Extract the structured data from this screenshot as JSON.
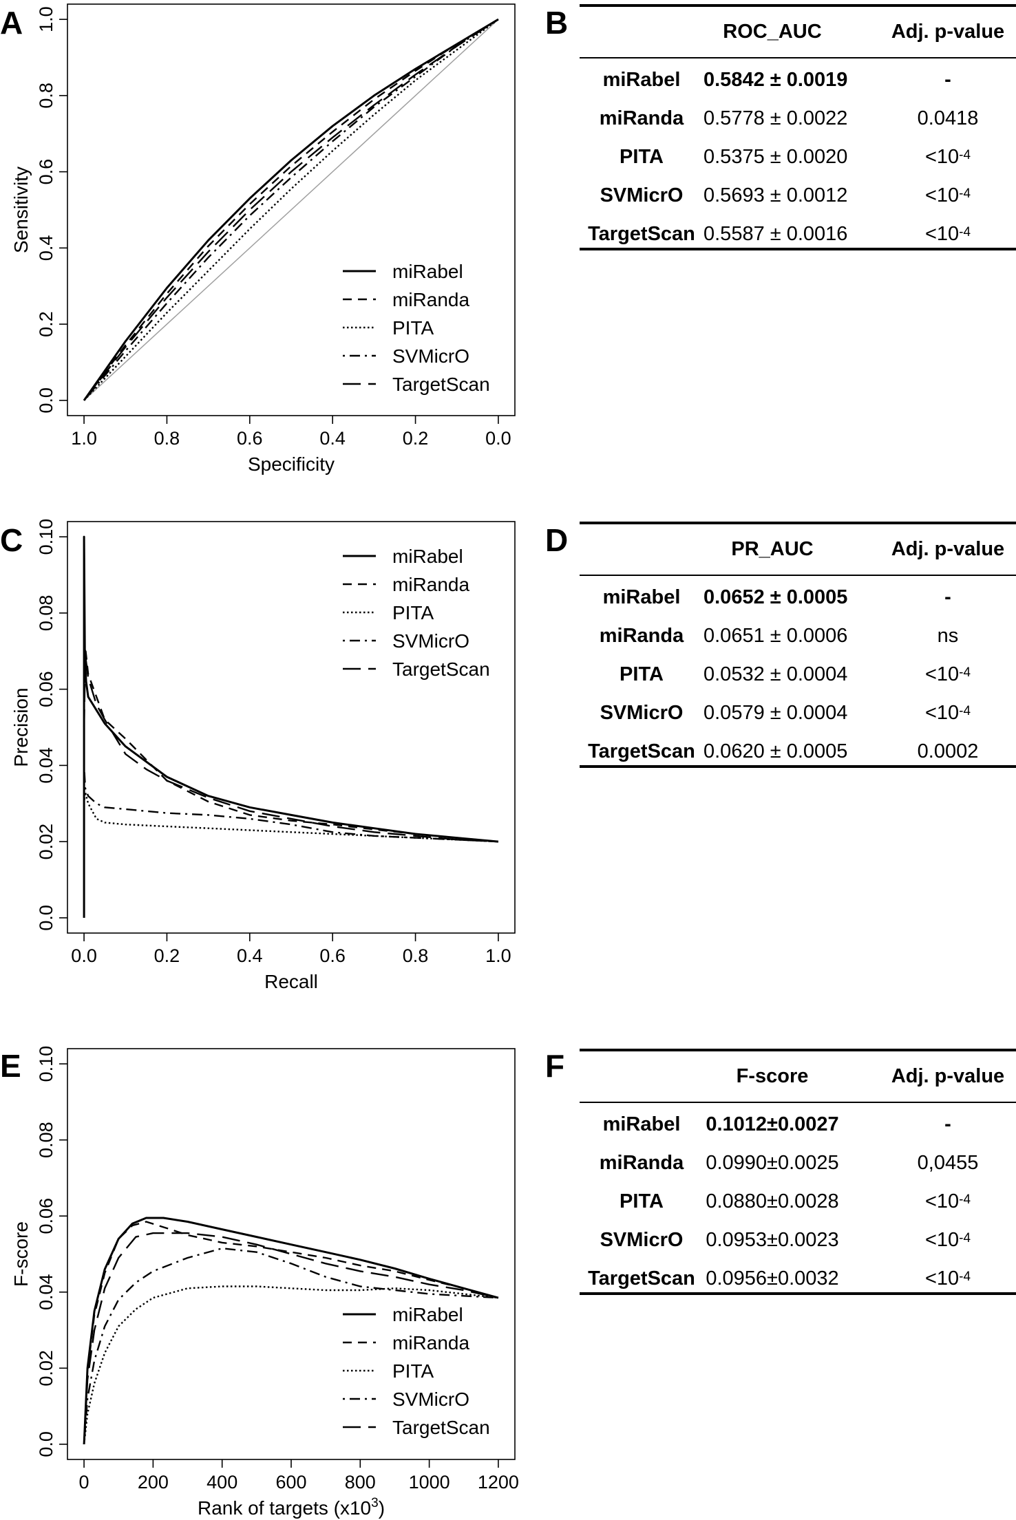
{
  "panels": [
    "A",
    "B",
    "C",
    "D",
    "E",
    "F"
  ],
  "line_styles": {
    "miRabel": "solid",
    "miRanda": "dashed",
    "PITA": "dotted",
    "SVMicrO": "dashdot",
    "TargetScan": "longdash"
  },
  "chart_data": [
    {
      "panel": "A",
      "type": "line",
      "title": "",
      "xlabel": "Specificity",
      "ylabel": "Sensitivity",
      "xlim": [
        1.0,
        0.0
      ],
      "ylim": [
        0.0,
        1.0
      ],
      "x_reversed": true,
      "xticks": [
        1.0,
        0.8,
        0.6,
        0.4,
        0.2,
        0.0
      ],
      "xtick_labels": [
        "1.0",
        "0.8",
        "0.6",
        "0.4",
        "0.2",
        "0.0"
      ],
      "yticks": [
        0.0,
        0.2,
        0.4,
        0.6,
        0.8,
        1.0
      ],
      "ytick_labels": [
        "0.0",
        "0.2",
        "0.4",
        "0.6",
        "0.8",
        "1.0"
      ],
      "reference_line": "diagonal",
      "legend": [
        "miRabel",
        "miRanda",
        "PITA",
        "SVMicrO",
        "TargetScan"
      ],
      "legend_position": "bottom-right",
      "series": [
        {
          "name": "miRabel",
          "x": [
            1.0,
            0.9,
            0.8,
            0.7,
            0.6,
            0.5,
            0.4,
            0.3,
            0.2,
            0.1,
            0.0
          ],
          "y": [
            0.0,
            0.155,
            0.295,
            0.42,
            0.53,
            0.63,
            0.72,
            0.8,
            0.87,
            0.935,
            1.0
          ]
        },
        {
          "name": "miRanda",
          "x": [
            1.0,
            0.9,
            0.8,
            0.7,
            0.6,
            0.5,
            0.4,
            0.3,
            0.2,
            0.1,
            0.0
          ],
          "y": [
            0.0,
            0.145,
            0.28,
            0.405,
            0.515,
            0.615,
            0.705,
            0.79,
            0.865,
            0.935,
            1.0
          ]
        },
        {
          "name": "PITA",
          "x": [
            1.0,
            0.9,
            0.8,
            0.7,
            0.6,
            0.5,
            0.4,
            0.3,
            0.2,
            0.1,
            0.0
          ],
          "y": [
            0.0,
            0.115,
            0.23,
            0.34,
            0.45,
            0.555,
            0.655,
            0.75,
            0.84,
            0.92,
            1.0
          ]
        },
        {
          "name": "SVMicrO",
          "x": [
            1.0,
            0.9,
            0.8,
            0.7,
            0.6,
            0.5,
            0.4,
            0.3,
            0.2,
            0.1,
            0.0
          ],
          "y": [
            0.0,
            0.13,
            0.255,
            0.375,
            0.485,
            0.585,
            0.68,
            0.77,
            0.85,
            0.93,
            1.0
          ]
        },
        {
          "name": "TargetScan",
          "x": [
            1.0,
            0.9,
            0.8,
            0.7,
            0.6,
            0.5,
            0.4,
            0.3,
            0.2,
            0.1,
            0.0
          ],
          "y": [
            0.0,
            0.14,
            0.27,
            0.39,
            0.5,
            0.6,
            0.69,
            0.775,
            0.855,
            0.93,
            1.0
          ]
        }
      ]
    },
    {
      "panel": "C",
      "type": "line",
      "title": "",
      "xlabel": "Recall",
      "ylabel": "Precision",
      "xlim": [
        0.0,
        1.0
      ],
      "ylim": [
        0.0,
        0.1
      ],
      "xticks": [
        0.0,
        0.2,
        0.4,
        0.6,
        0.8,
        1.0
      ],
      "xtick_labels": [
        "0.0",
        "0.2",
        "0.4",
        "0.6",
        "0.8",
        "1.0"
      ],
      "yticks": [
        0.0,
        0.02,
        0.04,
        0.06,
        0.08,
        0.1
      ],
      "ytick_labels": [
        "0.0",
        "0.02",
        "0.04",
        "0.06",
        "0.08",
        "0.10"
      ],
      "legend": [
        "miRabel",
        "miRanda",
        "PITA",
        "SVMicrO",
        "TargetScan"
      ],
      "legend_position": "top-right",
      "series": [
        {
          "name": "miRabel",
          "x": [
            0.0,
            0.0,
            0.002,
            0.005,
            0.01,
            0.05,
            0.1,
            0.2,
            0.3,
            0.4,
            0.5,
            0.6,
            0.7,
            0.8,
            0.9,
            1.0
          ],
          "y": [
            0.0,
            0.1,
            0.068,
            0.062,
            0.058,
            0.051,
            0.045,
            0.037,
            0.032,
            0.029,
            0.027,
            0.025,
            0.0235,
            0.022,
            0.021,
            0.02
          ]
        },
        {
          "name": "miRanda",
          "x": [
            0.0,
            0.003,
            0.01,
            0.05,
            0.1,
            0.2,
            0.3,
            0.4,
            0.5,
            0.6,
            0.7,
            0.8,
            0.9,
            1.0
          ],
          "y": [
            0.06,
            0.071,
            0.064,
            0.052,
            0.047,
            0.036,
            0.0305,
            0.027,
            0.0255,
            0.0245,
            0.0232,
            0.022,
            0.021,
            0.02
          ]
        },
        {
          "name": "PITA",
          "x": [
            0.0,
            0.003,
            0.01,
            0.03,
            0.05,
            0.1,
            0.2,
            0.3,
            0.4,
            0.5,
            0.6,
            0.7,
            0.8,
            0.9,
            1.0
          ],
          "y": [
            0.03,
            0.033,
            0.03,
            0.026,
            0.025,
            0.0245,
            0.024,
            0.0235,
            0.023,
            0.0225,
            0.022,
            0.0215,
            0.021,
            0.0205,
            0.02
          ]
        },
        {
          "name": "SVMicrO",
          "x": [
            0.0,
            0.003,
            0.01,
            0.03,
            0.05,
            0.1,
            0.2,
            0.3,
            0.4,
            0.5,
            0.6,
            0.7,
            0.8,
            0.9,
            1.0
          ],
          "y": [
            0.04,
            0.034,
            0.032,
            0.03,
            0.029,
            0.0285,
            0.0275,
            0.027,
            0.026,
            0.0245,
            0.0225,
            0.0215,
            0.021,
            0.0205,
            0.02
          ]
        },
        {
          "name": "TargetScan",
          "x": [
            0.0,
            0.003,
            0.01,
            0.03,
            0.05,
            0.1,
            0.15,
            0.2,
            0.3,
            0.4,
            0.5,
            0.6,
            0.7,
            0.8,
            0.9,
            1.0
          ],
          "y": [
            0.05,
            0.069,
            0.063,
            0.056,
            0.052,
            0.043,
            0.039,
            0.036,
            0.0315,
            0.028,
            0.026,
            0.024,
            0.0225,
            0.0215,
            0.0205,
            0.02
          ]
        }
      ]
    },
    {
      "panel": "E",
      "type": "line",
      "title": "",
      "xlabel": "Rank of targets (x10",
      "xlabel_sup": "3",
      "xlabel_end": ")",
      "ylabel": "F-score",
      "xlim": [
        0,
        1200
      ],
      "ylim": [
        0.0,
        0.1
      ],
      "xticks": [
        0,
        200,
        400,
        600,
        800,
        1000,
        1200
      ],
      "xtick_labels": [
        "0",
        "200",
        "400",
        "600",
        "800",
        "1000",
        "1200"
      ],
      "yticks": [
        0.0,
        0.02,
        0.04,
        0.06,
        0.08,
        0.1
      ],
      "ytick_labels": [
        "0.0",
        "0.02",
        "0.04",
        "0.06",
        "0.08",
        "0.10"
      ],
      "legend": [
        "miRabel",
        "miRanda",
        "PITA",
        "SVMicrO",
        "TargetScan"
      ],
      "legend_position": "bottom-right",
      "series": [
        {
          "name": "miRabel",
          "x": [
            0,
            10,
            30,
            60,
            100,
            140,
            180,
            230,
            300,
            400,
            500,
            600,
            700,
            800,
            900,
            1000,
            1100,
            1200
          ],
          "y": [
            0.0,
            0.02,
            0.035,
            0.046,
            0.054,
            0.058,
            0.0595,
            0.0595,
            0.0585,
            0.0565,
            0.0545,
            0.0525,
            0.0505,
            0.0485,
            0.0462,
            0.0435,
            0.041,
            0.0385
          ]
        },
        {
          "name": "miRanda",
          "x": [
            0,
            10,
            30,
            60,
            100,
            140,
            180,
            250,
            300,
            400,
            500,
            600,
            700,
            800,
            900,
            1000,
            1100,
            1200
          ],
          "y": [
            0.0,
            0.019,
            0.034,
            0.045,
            0.054,
            0.0575,
            0.0585,
            0.0565,
            0.055,
            0.053,
            0.052,
            0.0505,
            0.049,
            0.047,
            0.0455,
            0.0432,
            0.041,
            0.0385
          ]
        },
        {
          "name": "PITA",
          "x": [
            0,
            10,
            30,
            60,
            100,
            150,
            200,
            300,
            400,
            500,
            600,
            700,
            800,
            900,
            1000,
            1100,
            1200
          ],
          "y": [
            0.0,
            0.008,
            0.016,
            0.024,
            0.031,
            0.0355,
            0.0385,
            0.041,
            0.0415,
            0.0415,
            0.041,
            0.0405,
            0.0405,
            0.041,
            0.0405,
            0.0395,
            0.0385
          ]
        },
        {
          "name": "SVMicrO",
          "x": [
            0,
            10,
            30,
            60,
            100,
            150,
            200,
            300,
            400,
            500,
            600,
            700,
            800,
            900,
            1000,
            1100,
            1200
          ],
          "y": [
            0.0,
            0.012,
            0.022,
            0.031,
            0.038,
            0.0425,
            0.0455,
            0.049,
            0.0515,
            0.0505,
            0.0475,
            0.044,
            0.0415,
            0.0405,
            0.0395,
            0.039,
            0.0385
          ]
        },
        {
          "name": "TargetScan",
          "x": [
            0,
            10,
            30,
            60,
            100,
            150,
            200,
            300,
            400,
            500,
            600,
            700,
            800,
            900,
            1000,
            1100,
            1200
          ],
          "y": [
            0.0,
            0.017,
            0.03,
            0.041,
            0.049,
            0.0545,
            0.0555,
            0.0555,
            0.0545,
            0.0525,
            0.05,
            0.0475,
            0.0455,
            0.044,
            0.042,
            0.0405,
            0.0385
          ]
        }
      ]
    },
    {
      "panel": "B",
      "type": "table",
      "columns": [
        "",
        "ROC_AUC",
        "Adj. p-value"
      ],
      "rows": [
        {
          "name": "miRabel",
          "metric": "0.5842 ± 0.0019",
          "metric_bold": true,
          "p": "-",
          "p_sup": ""
        },
        {
          "name": "miRanda",
          "metric": "0.5778 ± 0.0022",
          "metric_bold": false,
          "p": "0.0418",
          "p_sup": ""
        },
        {
          "name": "PITA",
          "metric": "0.5375 ± 0.0020",
          "metric_bold": false,
          "p": "<10",
          "p_sup": "-4"
        },
        {
          "name": "SVMicrO",
          "metric": "0.5693 ± 0.0012",
          "metric_bold": false,
          "p": "<10",
          "p_sup": "-4"
        },
        {
          "name": "TargetScan",
          "metric": "0.5587 ± 0.0016",
          "metric_bold": false,
          "p": "<10",
          "p_sup": "-4"
        }
      ]
    },
    {
      "panel": "D",
      "type": "table",
      "columns": [
        "",
        "PR_AUC",
        "Adj. p-value"
      ],
      "rows": [
        {
          "name": "miRabel",
          "metric": "0.0652 ± 0.0005",
          "metric_bold": true,
          "p": "-",
          "p_sup": ""
        },
        {
          "name": "miRanda",
          "metric": "0.0651 ± 0.0006",
          "metric_bold": false,
          "p": "ns",
          "p_sup": ""
        },
        {
          "name": "PITA",
          "metric": "0.0532 ± 0.0004",
          "metric_bold": false,
          "p": "<10",
          "p_sup": "-4"
        },
        {
          "name": "SVMicrO",
          "metric": "0.0579 ± 0.0004",
          "metric_bold": false,
          "p": "<10",
          "p_sup": "-4"
        },
        {
          "name": "TargetScan",
          "metric": "0.0620 ± 0.0005",
          "metric_bold": false,
          "p": "0.0002",
          "p_sup": ""
        }
      ]
    },
    {
      "panel": "F",
      "type": "table",
      "columns": [
        "",
        "F-score",
        "Adj. p-value"
      ],
      "rows": [
        {
          "name": "miRabel",
          "metric": "0.1012±0.0027",
          "metric_bold": true,
          "p": "-",
          "p_sup": ""
        },
        {
          "name": "miRanda",
          "metric": "0.0990±0.0025",
          "metric_bold": false,
          "p": "0,0455",
          "p_sup": ""
        },
        {
          "name": "PITA",
          "metric": "0.0880±0.0028",
          "metric_bold": false,
          "p": "<10",
          "p_sup": "-4"
        },
        {
          "name": "SVMicrO",
          "metric": "0.0953±0.0023",
          "metric_bold": false,
          "p": "<10",
          "p_sup": "-4"
        },
        {
          "name": "TargetScan",
          "metric": "0.0956±0.0032",
          "metric_bold": false,
          "p": "<10",
          "p_sup": "-4"
        }
      ]
    }
  ]
}
